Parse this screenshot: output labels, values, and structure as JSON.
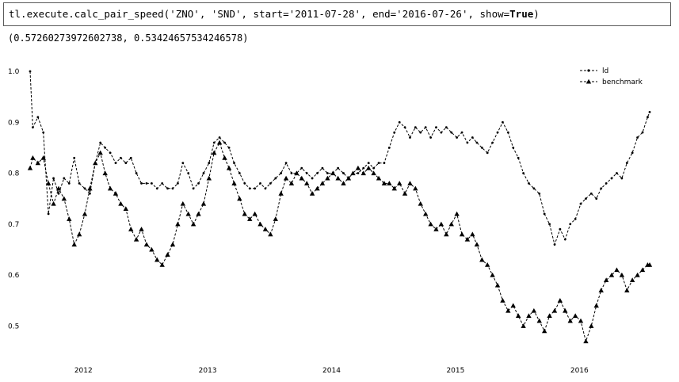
{
  "cell": {
    "code_prefix": "tl.execute.calc_pair_speed('ZNO', 'SND', start='2011-07-28', end='2016-07-26', show=",
    "code_keyword": "True",
    "code_suffix": ")"
  },
  "output": {
    "text": "(0.57260273972602738, 0.53424657534246578)"
  },
  "chart_data": {
    "type": "line",
    "title": "",
    "xlabel": "",
    "ylabel": "",
    "x_range": [
      "2011-07-28",
      "2016-07-26"
    ],
    "xticks": [
      "2012",
      "2013",
      "2014",
      "2015",
      "2016"
    ],
    "ylim": [
      0.46,
      1.0
    ],
    "yticks": [
      "1.0",
      "0.9",
      "0.8",
      "0.7",
      "0.6",
      "0.5"
    ],
    "grid": false,
    "legend_position": "top-right",
    "series": [
      {
        "name": "ld",
        "marker": "dot",
        "color": "#000000",
        "points": [
          [
            "2011-07-28",
            1.0
          ],
          [
            "2011-08-05",
            0.89
          ],
          [
            "2011-08-20",
            0.91
          ],
          [
            "2011-09-05",
            0.88
          ],
          [
            "2011-09-20",
            0.72
          ],
          [
            "2011-10-05",
            0.79
          ],
          [
            "2011-10-20",
            0.76
          ],
          [
            "2011-11-05",
            0.79
          ],
          [
            "2011-11-20",
            0.78
          ],
          [
            "2011-12-05",
            0.83
          ],
          [
            "2011-12-20",
            0.78
          ],
          [
            "2012-01-05",
            0.77
          ],
          [
            "2012-01-20",
            0.76
          ],
          [
            "2012-02-05",
            0.82
          ],
          [
            "2012-02-20",
            0.86
          ],
          [
            "2012-03-05",
            0.85
          ],
          [
            "2012-03-20",
            0.84
          ],
          [
            "2012-04-05",
            0.82
          ],
          [
            "2012-04-20",
            0.83
          ],
          [
            "2012-05-05",
            0.82
          ],
          [
            "2012-05-20",
            0.83
          ],
          [
            "2012-06-05",
            0.8
          ],
          [
            "2012-06-20",
            0.78
          ],
          [
            "2012-07-05",
            0.78
          ],
          [
            "2012-07-20",
            0.78
          ],
          [
            "2012-08-05",
            0.77
          ],
          [
            "2012-08-20",
            0.78
          ],
          [
            "2012-09-05",
            0.77
          ],
          [
            "2012-09-20",
            0.77
          ],
          [
            "2012-10-05",
            0.78
          ],
          [
            "2012-10-20",
            0.82
          ],
          [
            "2012-11-05",
            0.8
          ],
          [
            "2012-11-20",
            0.77
          ],
          [
            "2012-12-05",
            0.78
          ],
          [
            "2012-12-20",
            0.8
          ],
          [
            "2013-01-05",
            0.82
          ],
          [
            "2013-01-20",
            0.86
          ],
          [
            "2013-02-05",
            0.87
          ],
          [
            "2013-02-20",
            0.86
          ],
          [
            "2013-03-05",
            0.85
          ],
          [
            "2013-03-20",
            0.82
          ],
          [
            "2013-04-05",
            0.8
          ],
          [
            "2013-04-20",
            0.78
          ],
          [
            "2013-05-05",
            0.77
          ],
          [
            "2013-05-20",
            0.77
          ],
          [
            "2013-06-05",
            0.78
          ],
          [
            "2013-06-20",
            0.77
          ],
          [
            "2013-07-05",
            0.78
          ],
          [
            "2013-07-20",
            0.79
          ],
          [
            "2013-08-05",
            0.8
          ],
          [
            "2013-08-20",
            0.82
          ],
          [
            "2013-09-05",
            0.8
          ],
          [
            "2013-09-20",
            0.8
          ],
          [
            "2013-10-05",
            0.81
          ],
          [
            "2013-10-20",
            0.8
          ],
          [
            "2013-11-05",
            0.79
          ],
          [
            "2013-11-20",
            0.8
          ],
          [
            "2013-12-05",
            0.81
          ],
          [
            "2013-12-20",
            0.8
          ],
          [
            "2014-01-05",
            0.8
          ],
          [
            "2014-01-20",
            0.81
          ],
          [
            "2014-02-05",
            0.8
          ],
          [
            "2014-02-20",
            0.79
          ],
          [
            "2014-03-05",
            0.8
          ],
          [
            "2014-03-20",
            0.8
          ],
          [
            "2014-04-05",
            0.81
          ],
          [
            "2014-04-20",
            0.82
          ],
          [
            "2014-05-05",
            0.81
          ],
          [
            "2014-05-20",
            0.82
          ],
          [
            "2014-06-05",
            0.82
          ],
          [
            "2014-06-20",
            0.85
          ],
          [
            "2014-07-05",
            0.88
          ],
          [
            "2014-07-20",
            0.9
          ],
          [
            "2014-08-05",
            0.89
          ],
          [
            "2014-08-20",
            0.87
          ],
          [
            "2014-09-05",
            0.89
          ],
          [
            "2014-09-20",
            0.88
          ],
          [
            "2014-10-05",
            0.89
          ],
          [
            "2014-10-20",
            0.87
          ],
          [
            "2014-11-05",
            0.89
          ],
          [
            "2014-11-20",
            0.88
          ],
          [
            "2014-12-05",
            0.89
          ],
          [
            "2014-12-20",
            0.88
          ],
          [
            "2015-01-05",
            0.87
          ],
          [
            "2015-01-20",
            0.88
          ],
          [
            "2015-02-05",
            0.86
          ],
          [
            "2015-02-20",
            0.87
          ],
          [
            "2015-03-05",
            0.86
          ],
          [
            "2015-03-20",
            0.85
          ],
          [
            "2015-04-05",
            0.84
          ],
          [
            "2015-04-20",
            0.86
          ],
          [
            "2015-05-05",
            0.88
          ],
          [
            "2015-05-20",
            0.9
          ],
          [
            "2015-06-05",
            0.88
          ],
          [
            "2015-06-20",
            0.85
          ],
          [
            "2015-07-05",
            0.83
          ],
          [
            "2015-07-20",
            0.8
          ],
          [
            "2015-08-05",
            0.78
          ],
          [
            "2015-08-20",
            0.77
          ],
          [
            "2015-09-05",
            0.76
          ],
          [
            "2015-09-20",
            0.72
          ],
          [
            "2015-10-05",
            0.7
          ],
          [
            "2015-10-20",
            0.66
          ],
          [
            "2015-11-05",
            0.69
          ],
          [
            "2015-11-20",
            0.67
          ],
          [
            "2015-12-05",
            0.7
          ],
          [
            "2015-12-20",
            0.71
          ],
          [
            "2016-01-05",
            0.74
          ],
          [
            "2016-01-20",
            0.75
          ],
          [
            "2016-02-05",
            0.76
          ],
          [
            "2016-02-20",
            0.75
          ],
          [
            "2016-03-05",
            0.77
          ],
          [
            "2016-03-20",
            0.78
          ],
          [
            "2016-04-05",
            0.79
          ],
          [
            "2016-04-20",
            0.8
          ],
          [
            "2016-05-05",
            0.79
          ],
          [
            "2016-05-20",
            0.82
          ],
          [
            "2016-06-05",
            0.84
          ],
          [
            "2016-06-20",
            0.87
          ],
          [
            "2016-07-05",
            0.88
          ],
          [
            "2016-07-20",
            0.91
          ],
          [
            "2016-07-26",
            0.92
          ]
        ]
      },
      {
        "name": "benchmark",
        "marker": "triangle",
        "color": "#000000",
        "points": [
          [
            "2011-07-28",
            0.81
          ],
          [
            "2011-08-05",
            0.83
          ],
          [
            "2011-08-20",
            0.82
          ],
          [
            "2011-09-05",
            0.83
          ],
          [
            "2011-09-20",
            0.78
          ],
          [
            "2011-10-05",
            0.74
          ],
          [
            "2011-10-20",
            0.77
          ],
          [
            "2011-11-05",
            0.75
          ],
          [
            "2011-11-20",
            0.71
          ],
          [
            "2011-12-05",
            0.66
          ],
          [
            "2011-12-20",
            0.68
          ],
          [
            "2012-01-05",
            0.72
          ],
          [
            "2012-01-20",
            0.77
          ],
          [
            "2012-02-05",
            0.82
          ],
          [
            "2012-02-20",
            0.84
          ],
          [
            "2012-03-05",
            0.8
          ],
          [
            "2012-03-20",
            0.77
          ],
          [
            "2012-04-05",
            0.76
          ],
          [
            "2012-04-20",
            0.74
          ],
          [
            "2012-05-05",
            0.73
          ],
          [
            "2012-05-20",
            0.69
          ],
          [
            "2012-06-05",
            0.67
          ],
          [
            "2012-06-20",
            0.69
          ],
          [
            "2012-07-05",
            0.66
          ],
          [
            "2012-07-20",
            0.65
          ],
          [
            "2012-08-05",
            0.63
          ],
          [
            "2012-08-20",
            0.62
          ],
          [
            "2012-09-05",
            0.64
          ],
          [
            "2012-09-20",
            0.66
          ],
          [
            "2012-10-05",
            0.7
          ],
          [
            "2012-10-20",
            0.74
          ],
          [
            "2012-11-05",
            0.72
          ],
          [
            "2012-11-20",
            0.7
          ],
          [
            "2012-12-05",
            0.72
          ],
          [
            "2012-12-20",
            0.74
          ],
          [
            "2013-01-05",
            0.79
          ],
          [
            "2013-01-20",
            0.84
          ],
          [
            "2013-02-05",
            0.86
          ],
          [
            "2013-02-20",
            0.83
          ],
          [
            "2013-03-05",
            0.81
          ],
          [
            "2013-03-20",
            0.78
          ],
          [
            "2013-04-05",
            0.75
          ],
          [
            "2013-04-20",
            0.72
          ],
          [
            "2013-05-05",
            0.71
          ],
          [
            "2013-05-20",
            0.72
          ],
          [
            "2013-06-05",
            0.7
          ],
          [
            "2013-06-20",
            0.69
          ],
          [
            "2013-07-05",
            0.68
          ],
          [
            "2013-07-20",
            0.71
          ],
          [
            "2013-08-05",
            0.76
          ],
          [
            "2013-08-20",
            0.79
          ],
          [
            "2013-09-05",
            0.78
          ],
          [
            "2013-09-20",
            0.8
          ],
          [
            "2013-10-05",
            0.79
          ],
          [
            "2013-10-20",
            0.78
          ],
          [
            "2013-11-05",
            0.76
          ],
          [
            "2013-11-20",
            0.77
          ],
          [
            "2013-12-05",
            0.78
          ],
          [
            "2013-12-20",
            0.79
          ],
          [
            "2014-01-05",
            0.8
          ],
          [
            "2014-01-20",
            0.79
          ],
          [
            "2014-02-05",
            0.78
          ],
          [
            "2014-02-20",
            0.79
          ],
          [
            "2014-03-05",
            0.8
          ],
          [
            "2014-03-20",
            0.81
          ],
          [
            "2014-04-05",
            0.8
          ],
          [
            "2014-04-20",
            0.81
          ],
          [
            "2014-05-05",
            0.8
          ],
          [
            "2014-05-20",
            0.79
          ],
          [
            "2014-06-05",
            0.78
          ],
          [
            "2014-06-20",
            0.78
          ],
          [
            "2014-07-05",
            0.77
          ],
          [
            "2014-07-20",
            0.78
          ],
          [
            "2014-08-05",
            0.76
          ],
          [
            "2014-08-20",
            0.78
          ],
          [
            "2014-09-05",
            0.77
          ],
          [
            "2014-09-20",
            0.74
          ],
          [
            "2014-10-05",
            0.72
          ],
          [
            "2014-10-20",
            0.7
          ],
          [
            "2014-11-05",
            0.69
          ],
          [
            "2014-11-20",
            0.7
          ],
          [
            "2014-12-05",
            0.68
          ],
          [
            "2014-12-20",
            0.7
          ],
          [
            "2015-01-05",
            0.72
          ],
          [
            "2015-01-20",
            0.68
          ],
          [
            "2015-02-05",
            0.67
          ],
          [
            "2015-02-20",
            0.68
          ],
          [
            "2015-03-05",
            0.66
          ],
          [
            "2015-03-20",
            0.63
          ],
          [
            "2015-04-05",
            0.62
          ],
          [
            "2015-04-20",
            0.6
          ],
          [
            "2015-05-05",
            0.58
          ],
          [
            "2015-05-20",
            0.55
          ],
          [
            "2015-06-05",
            0.53
          ],
          [
            "2015-06-20",
            0.54
          ],
          [
            "2015-07-05",
            0.52
          ],
          [
            "2015-07-20",
            0.5
          ],
          [
            "2015-08-05",
            0.52
          ],
          [
            "2015-08-20",
            0.53
          ],
          [
            "2015-09-05",
            0.51
          ],
          [
            "2015-09-20",
            0.49
          ],
          [
            "2015-10-05",
            0.52
          ],
          [
            "2015-10-20",
            0.53
          ],
          [
            "2015-11-05",
            0.55
          ],
          [
            "2015-11-20",
            0.53
          ],
          [
            "2015-12-05",
            0.51
          ],
          [
            "2015-12-20",
            0.52
          ],
          [
            "2016-01-05",
            0.51
          ],
          [
            "2016-01-20",
            0.47
          ],
          [
            "2016-02-05",
            0.5
          ],
          [
            "2016-02-20",
            0.54
          ],
          [
            "2016-03-05",
            0.57
          ],
          [
            "2016-03-20",
            0.59
          ],
          [
            "2016-04-05",
            0.6
          ],
          [
            "2016-04-20",
            0.61
          ],
          [
            "2016-05-05",
            0.6
          ],
          [
            "2016-05-20",
            0.57
          ],
          [
            "2016-06-05",
            0.59
          ],
          [
            "2016-06-20",
            0.6
          ],
          [
            "2016-07-05",
            0.61
          ],
          [
            "2016-07-20",
            0.62
          ],
          [
            "2016-07-26",
            0.62
          ]
        ]
      }
    ]
  }
}
